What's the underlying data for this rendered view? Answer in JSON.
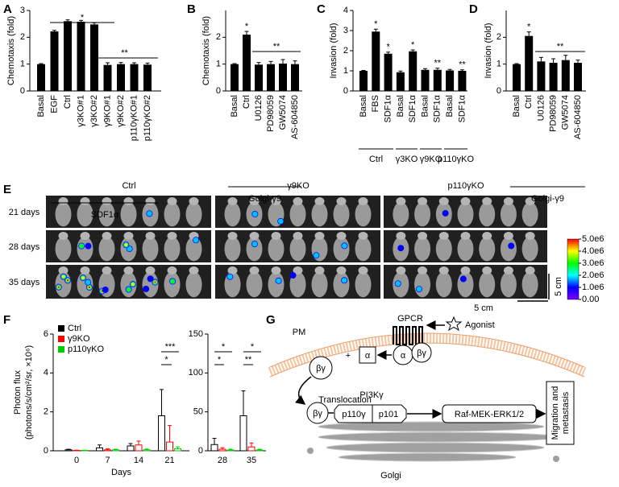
{
  "panel_labels": [
    "A",
    "B",
    "C",
    "D",
    "E",
    "F",
    "G"
  ],
  "chart_data": [
    {
      "type": "bar",
      "ylabel": "Chemotaxis (fold)",
      "color": "#000000",
      "categories": [
        "Basal",
        "EGF",
        "Ctrl",
        "γ3KO#1",
        "γ3KO#2",
        "γ9KO#1",
        "γ9KO#2",
        "p110γKO#1",
        "p110γKO#2"
      ],
      "values": [
        1,
        2.22,
        2.6,
        2.58,
        2.48,
        0.97,
        1.0,
        1.0,
        0.98
      ],
      "errors": [
        0.02,
        0.04,
        0.05,
        0.05,
        0.06,
        0.08,
        0.06,
        0.05,
        0.06
      ],
      "ylim": [
        0,
        3
      ],
      "yticks": [
        0,
        1,
        2,
        3
      ],
      "significance": [
        "*",
        "**"
      ],
      "group_label": "SDF1α"
    },
    {
      "type": "bar",
      "ylabel": "Chemotaxis (fold)",
      "color": "#000000",
      "categories": [
        "Basal",
        "Ctrl",
        "U0126",
        "PD98059",
        "GW5074",
        "AS-604850"
      ],
      "values": [
        1,
        2.1,
        0.98,
        1.0,
        1.02,
        1.0
      ],
      "errors": [
        0.02,
        0.12,
        0.08,
        0.1,
        0.15,
        0.12
      ],
      "bar_labels": [
        null,
        "*",
        null,
        null,
        null,
        null
      ],
      "ylim": [
        0,
        3
      ],
      "yticks": [
        0,
        1,
        2
      ],
      "significance": [
        "**"
      ],
      "group_label": "Golgi-γ9"
    },
    {
      "type": "bar",
      "ylabel": "Invasion (fold)",
      "color": "#000000",
      "categories": [
        "Basal",
        "FBS",
        "SDF1α",
        "Basal",
        "SDF1α",
        "Basal",
        "SDF1α",
        "Basal",
        "SDF1α"
      ],
      "values": [
        1,
        2.95,
        1.85,
        0.93,
        1.97,
        1.05,
        1.05,
        1.02,
        1.0
      ],
      "errors": [
        0.02,
        0.12,
        0.08,
        0.06,
        0.07,
        0.06,
        0.08,
        0.05,
        0.05
      ],
      "bar_labels": [
        null,
        "*",
        "*",
        null,
        "*",
        null,
        "**",
        null,
        "**"
      ],
      "ylim": [
        0,
        4
      ],
      "yticks": [
        0,
        1,
        2,
        3,
        4
      ],
      "groups": [
        "Ctrl",
        "γ3KO",
        "γ9KO",
        "p110γKO"
      ]
    },
    {
      "type": "bar",
      "ylabel": "Invasion (fold)",
      "color": "#000000",
      "categories": [
        "Basal",
        "Ctrl",
        "U0126",
        "PD98059",
        "GW5074",
        "AS-604850"
      ],
      "values": [
        1,
        2.05,
        1.1,
        1.05,
        1.15,
        1.05
      ],
      "errors": [
        0.02,
        0.15,
        0.15,
        0.15,
        0.18,
        0.1
      ],
      "bar_labels": [
        null,
        "*",
        null,
        null,
        null,
        null
      ],
      "ylim": [
        0,
        3
      ],
      "yticks": [
        0,
        1,
        2
      ],
      "significance": [
        "**"
      ],
      "group_label": "Golgi-γ9"
    },
    {
      "type": "grouped_bar",
      "ylabel": [
        "Photon flux",
        "(photons/s/cm²/sr, ×10⁶)"
      ],
      "xlabel": "Days",
      "categories": [
        "0",
        "7",
        "14",
        "21"
      ],
      "series": [
        {
          "name": "Ctrl",
          "color": "#000000",
          "values": [
            0.05,
            0.15,
            0.25,
            1.8
          ],
          "errors": [
            0.03,
            0.15,
            0.12,
            1.35
          ]
        },
        {
          "name": "γ9KO",
          "color": "#ff0000",
          "values": [
            0.02,
            0.05,
            0.3,
            0.45
          ],
          "errors": [
            0.01,
            0.05,
            0.2,
            0.85
          ]
        },
        {
          "name": "p110γKO",
          "color": "#00cc00",
          "values": [
            0.02,
            0.05,
            0.05,
            0.1
          ],
          "errors": [
            0.01,
            0.03,
            0.04,
            0.1
          ]
        }
      ],
      "ylim": [
        0,
        6
      ],
      "yticks": [
        0,
        2,
        4,
        6
      ],
      "significance": [
        "***",
        "*"
      ],
      "legend": "upper left"
    },
    {
      "type": "grouped_bar",
      "categories": [
        "28",
        "35"
      ],
      "series": [
        {
          "color": "#000000",
          "values": [
            8,
            45
          ],
          "errors": [
            8,
            32
          ]
        },
        {
          "color": "#ff0000",
          "values": [
            2,
            5
          ],
          "errors": [
            2,
            5
          ]
        },
        {
          "color": "#00cc00",
          "values": [
            1,
            1
          ],
          "errors": [
            1,
            1
          ]
        }
      ],
      "ylim": [
        0,
        150
      ],
      "yticks": [
        0,
        50,
        100,
        150
      ],
      "significance": [
        "*",
        "*",
        "*",
        "**"
      ]
    }
  ],
  "image": {
    "columns": [
      "Ctrl",
      "γ9KO",
      "p110γKO"
    ],
    "rows": [
      "21 days",
      "28 days",
      "35 days"
    ],
    "scale_bars": [
      "5 cm",
      "5 cm"
    ],
    "colorbar_lim": [
      0,
      5000000
    ],
    "colorbar_ticks": [
      {
        "value": 5000000,
        "label": "5.0e6"
      },
      {
        "value": 4000000,
        "label": "4.0e6"
      },
      {
        "value": 3000000,
        "label": "3.0e6"
      },
      {
        "value": 2000000,
        "label": "2.0e6"
      },
      {
        "value": 1000000,
        "label": "1.0e6"
      },
      {
        "value": 0,
        "label": "0.00"
      }
    ]
  },
  "diagram": {
    "pm": "PM",
    "gpcr": "GPCR",
    "agonist": "Agonist",
    "alpha_free": "α",
    "alpha_bound": "α",
    "plus": "+",
    "beta_gamma_bound": "βγ",
    "beta_gamma_free": "βγ",
    "beta_gamma_golgi": "βγ",
    "translocation": "Translocation",
    "pi3k": "PI3Kγ",
    "p110": "p110γ",
    "p101": "p101",
    "raf": "Raf-MEK-ERK1/2",
    "migration": [
      "Migration and",
      "metastasis"
    ],
    "golgi": "Golgi"
  }
}
